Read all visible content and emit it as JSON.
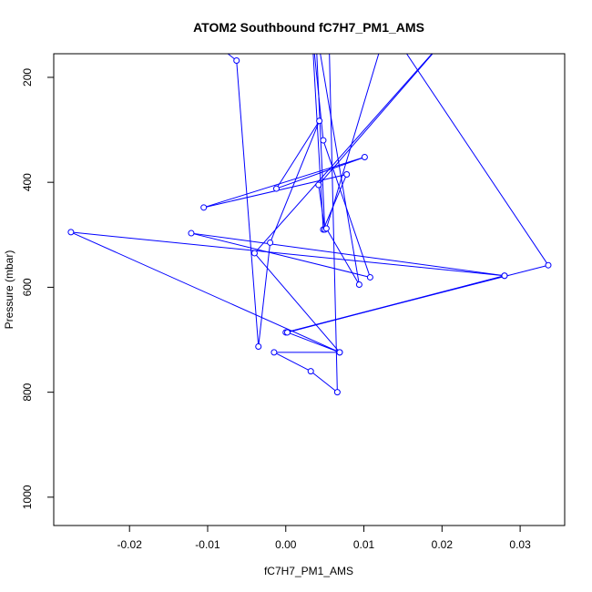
{
  "chart_data": {
    "type": "scatter",
    "title": "ATOM2 Southbound fC7H7_PM1_AMS",
    "xlabel": "fC7H7_PM1_AMS",
    "ylabel": "Pressure (mbar)",
    "xlim": [
      -0.0297,
      0.0357
    ],
    "ylim": [
      1054,
      155
    ],
    "y_axis_inverted": true,
    "x_ticks": [
      -0.02,
      -0.01,
      0.0,
      0.01,
      0.02,
      0.03
    ],
    "x_tick_labels": [
      "-0.02",
      "-0.01",
      "0.00",
      "0.01",
      "0.02",
      "0.03"
    ],
    "y_ticks": [
      200,
      400,
      600,
      800,
      1000
    ],
    "y_tick_labels": [
      "200",
      "400",
      "600",
      "800",
      "1000"
    ],
    "grid": false,
    "legend": "none",
    "series": [
      {
        "color": "#0000ff",
        "marker": "open-circle",
        "line": true,
        "points": [
          {
            "x": -0.0125,
            "y": 95
          },
          {
            "x": -0.0063,
            "y": 168
          },
          {
            "x": -0.0035,
            "y": 713
          },
          {
            "x": -0.002,
            "y": 515
          },
          {
            "x": 0.0043,
            "y": 283
          },
          {
            "x": -0.0012,
            "y": 412
          },
          {
            "x": 0.0101,
            "y": 352
          },
          {
            "x": -0.0105,
            "y": 448
          },
          {
            "x": 0.0078,
            "y": 385
          },
          {
            "x": 0.0048,
            "y": 490
          },
          {
            "x": 0.0033,
            "y": 100
          },
          {
            "x": 0.0048,
            "y": 320
          },
          {
            "x": 0.0108,
            "y": 581
          },
          {
            "x": -0.0121,
            "y": 497
          },
          {
            "x": 0.028,
            "y": 578
          },
          {
            "x": -0.0275,
            "y": 495
          },
          {
            "x": 0.0069,
            "y": 724
          },
          {
            "x": -0.004,
            "y": 535
          },
          {
            "x": 0.022,
            "y": 100
          },
          {
            "x": 0.0042,
            "y": 405
          },
          {
            "x": 0.005,
            "y": 490
          },
          {
            "x": 0.0038,
            "y": 100
          },
          {
            "x": 0.0094,
            "y": 595
          },
          {
            "x": 0.0052,
            "y": 488
          },
          {
            "x": 0.013,
            "y": 100
          },
          {
            "x": 0.0336,
            "y": 558
          },
          {
            "x": 0.0,
            "y": 686
          },
          {
            "x": 0.028,
            "y": 578
          },
          {
            "x": 0.0002,
            "y": 686
          },
          {
            "x": 0.0069,
            "y": 724
          },
          {
            "x": -0.0015,
            "y": 724
          },
          {
            "x": 0.0032,
            "y": 760
          },
          {
            "x": 0.0066,
            "y": 800
          },
          {
            "x": 0.0055,
            "y": 100
          }
        ]
      }
    ]
  }
}
